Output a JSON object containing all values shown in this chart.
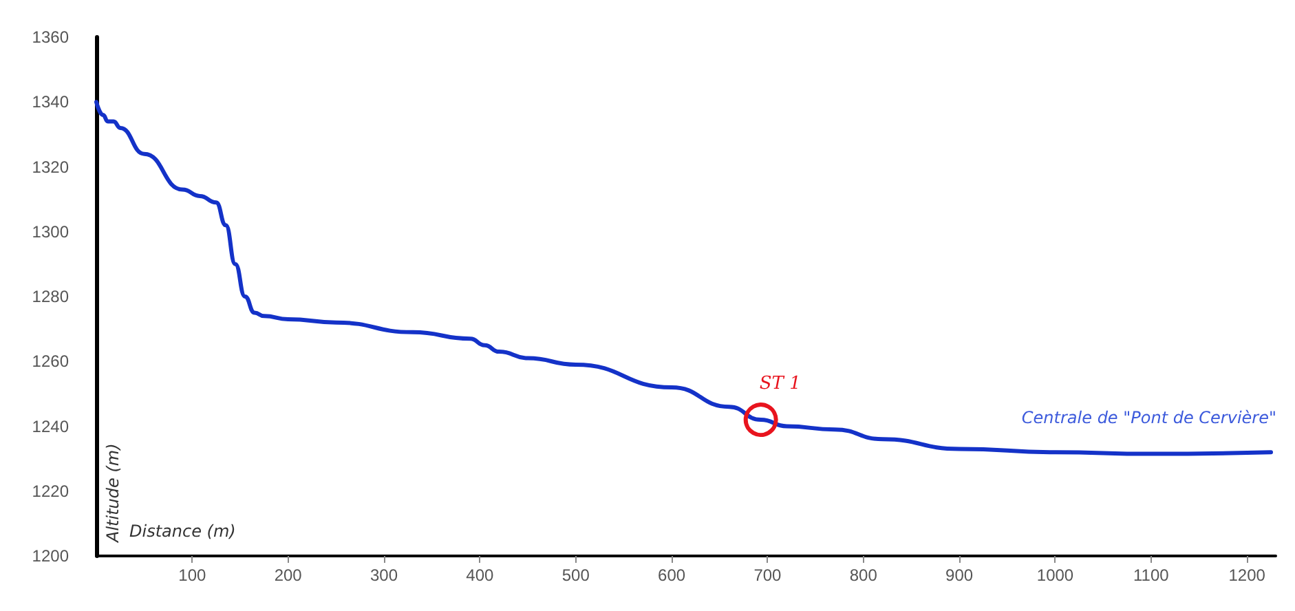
{
  "chart_data": {
    "type": "line",
    "xlabel": "Distance (m)",
    "ylabel": "Altitude (m)",
    "x": [
      0,
      7,
      12,
      18,
      25,
      50,
      90,
      108,
      125,
      135,
      145,
      155,
      165,
      175,
      200,
      250,
      330,
      390,
      405,
      420,
      450,
      500,
      600,
      660,
      693,
      720,
      770,
      820,
      900,
      1000,
      1100,
      1225
    ],
    "series": [
      {
        "color": "#1432c8",
        "values": [
          1340,
          1336,
          1334,
          1334,
          1332,
          1324,
          1313,
          1311,
          1309,
          1302,
          1290,
          1280,
          1275,
          1274,
          1273,
          1272,
          1269,
          1267,
          1265,
          1263,
          1261,
          1259,
          1252,
          1246,
          1242,
          1240,
          1239,
          1236,
          1233,
          1232,
          1231.5,
          1232
        ]
      }
    ],
    "annotations": [
      {
        "text": "ST 1",
        "x": 693,
        "y": 1242
      },
      {
        "text": "Centrale de \"Pont de Cervière\"",
        "x": 1225,
        "y": 1232
      }
    ],
    "xlim": [
      0,
      1230
    ],
    "ylim": [
      1200,
      1360
    ],
    "xticks": [
      100,
      200,
      300,
      400,
      500,
      600,
      700,
      800,
      900,
      1000,
      1100,
      1200
    ],
    "yticks": [
      1200,
      1220,
      1240,
      1260,
      1280,
      1300,
      1320,
      1340,
      1360
    ],
    "grid": false,
    "marker": "none",
    "line_style": "solid"
  }
}
